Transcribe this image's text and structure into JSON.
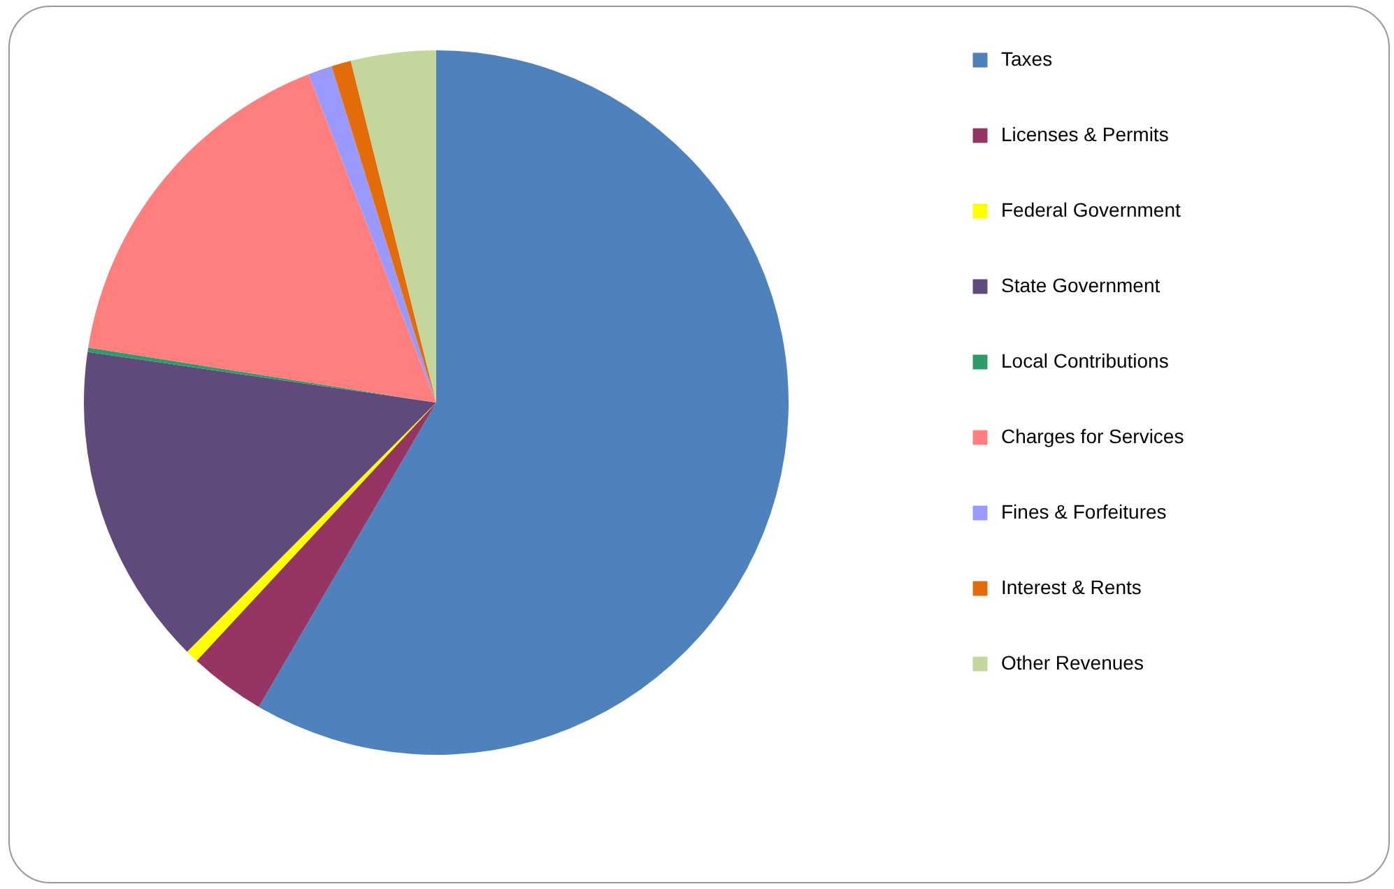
{
  "chart_data": {
    "type": "pie",
    "categories": [
      "Taxes",
      "Licenses & Permits",
      "Federal Government",
      "State Government",
      "Local Contributions",
      "Charges for Services",
      "Fines & Forfeitures",
      "Interest & Rents",
      "Other Revenues"
    ],
    "values": [
      58.4,
      3.5,
      0.6,
      14.8,
      0.2,
      16.6,
      1.1,
      0.9,
      3.9
    ],
    "colors": [
      "#4f81bd",
      "#953564",
      "#ffff00",
      "#604a7b",
      "#2e9b6b",
      "#ff7f7f",
      "#9999ff",
      "#e36c09",
      "#c3d69b"
    ],
    "legend": "right"
  }
}
